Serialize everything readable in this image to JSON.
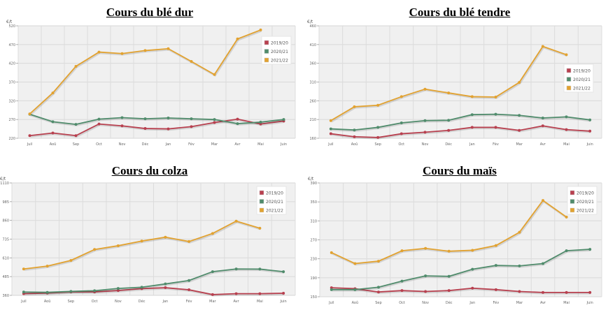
{
  "chart_data": [
    {
      "type": "line",
      "title": "Cours du blé dur",
      "ylabel": "€/t",
      "ylim": [
        220,
        520
      ],
      "yticks": [
        220,
        270,
        320,
        370,
        420,
        470,
        520
      ],
      "categories": [
        "Juil",
        "Aoû",
        "Sep",
        "Oct",
        "Nov",
        "Déc",
        "Jan",
        "Fév",
        "Mar",
        "Avr",
        "Mai",
        "Juin"
      ],
      "grid": true,
      "legend": "top-right",
      "series": [
        {
          "name": "2019/20",
          "color": "#b8404f",
          "values": [
            227,
            234,
            227,
            258,
            253,
            246,
            245,
            251,
            262,
            271,
            258,
            266
          ]
        },
        {
          "name": "2020/21",
          "color": "#508c6c",
          "values": [
            284,
            264,
            257,
            271,
            275,
            272,
            274,
            272,
            270,
            259,
            263,
            270
          ]
        },
        {
          "name": "2021/22",
          "color": "#e2a230",
          "values": [
            285,
            341,
            412,
            450,
            446,
            454,
            459,
            425,
            390,
            485,
            509,
            null
          ]
        }
      ]
    },
    {
      "type": "line",
      "title": "Cours du blé tendre",
      "ylabel": "€/t",
      "ylim": [
        160,
        460
      ],
      "yticks": [
        160,
        210,
        260,
        310,
        360,
        410,
        460
      ],
      "categories": [
        "Juil",
        "Aoû",
        "Sep",
        "Oct",
        "Nov",
        "Déc",
        "Jan",
        "Fév",
        "Mar",
        "Avr",
        "Mai",
        "Juin"
      ],
      "grid": true,
      "legend": "right",
      "series": [
        {
          "name": "2019/20",
          "color": "#b8404f",
          "values": [
            172,
            164,
            162,
            172,
            176,
            181,
            189,
            189,
            181,
            193,
            183,
            179
          ]
        },
        {
          "name": "2020/21",
          "color": "#508c6c",
          "values": [
            185,
            182,
            189,
            201,
            207,
            208,
            223,
            224,
            221,
            214,
            217,
            209
          ]
        },
        {
          "name": "2021/22",
          "color": "#e2a230",
          "values": [
            207,
            244,
            248,
            271,
            291,
            281,
            271,
            270,
            309,
            405,
            383,
            null
          ]
        }
      ]
    },
    {
      "type": "line",
      "title": "Cours du colza",
      "ylabel": "€/t",
      "ylim": [
        360,
        1110
      ],
      "yticks": [
        360,
        485,
        610,
        735,
        860,
        985,
        1110
      ],
      "categories": [
        "Juil",
        "Aoû",
        "Sep",
        "Oct",
        "Nov",
        "Déc",
        "Jan",
        "Fév",
        "Mar",
        "Avr",
        "Mai",
        "Juin"
      ],
      "grid": true,
      "legend": "top-right",
      "series": [
        {
          "name": "2019/20",
          "color": "#b8404f",
          "values": [
            371,
            375,
            383,
            383,
            392,
            405,
            411,
            397,
            365,
            371,
            371,
            374
          ]
        },
        {
          "name": "2020/21",
          "color": "#508c6c",
          "values": [
            382,
            380,
            386,
            391,
            406,
            414,
            436,
            459,
            518,
            536,
            535,
            518
          ]
        },
        {
          "name": "2021/22",
          "color": "#e2a230",
          "values": [
            536,
            555,
            593,
            666,
            691,
            722,
            748,
            719,
            773,
            855,
            808,
            null
          ]
        }
      ]
    },
    {
      "type": "line",
      "title": "Cours du maïs",
      "ylabel": "€/t",
      "ylim": [
        150,
        390
      ],
      "yticks": [
        150,
        190,
        230,
        270,
        310,
        350,
        390
      ],
      "categories": [
        "Juil",
        "Aoû",
        "Sep",
        "Oct",
        "Nov",
        "Déc",
        "Jan",
        "Fév",
        "Mar",
        "Avr",
        "Mai",
        "Juin"
      ],
      "grid": true,
      "legend": "top-right",
      "series": [
        {
          "name": "2019/20",
          "color": "#b8404f",
          "values": [
            169,
            167,
            160,
            163,
            161,
            163,
            168,
            165,
            161,
            159,
            159,
            159
          ]
        },
        {
          "name": "2020/21",
          "color": "#508c6c",
          "values": [
            165,
            165,
            170,
            183,
            194,
            193,
            208,
            216,
            215,
            220,
            247,
            250
          ]
        },
        {
          "name": "2021/22",
          "color": "#e2a230",
          "values": [
            243,
            220,
            225,
            247,
            252,
            246,
            248,
            258,
            286,
            353,
            318,
            null
          ]
        }
      ]
    }
  ]
}
